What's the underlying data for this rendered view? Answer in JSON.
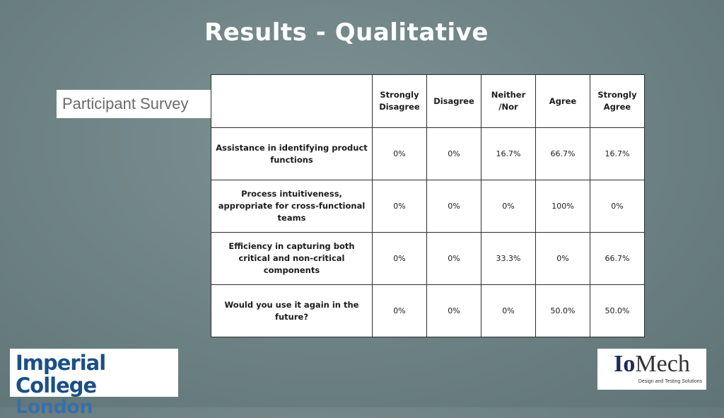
{
  "title": "Results - Qualitative",
  "survey_label": "Participant Survey",
  "table": {
    "headers": [
      "",
      "Strongly Disagree",
      "Disagree",
      "Neither /Nor",
      "Agree",
      "Strongly Agree"
    ],
    "rows": [
      {
        "question": "Assistance in identifying product functions",
        "values": [
          "0%",
          "0%",
          "16.7%",
          "66.7%",
          "16.7%"
        ]
      },
      {
        "question": "Process intuitiveness, appropriate for cross-functional teams",
        "values": [
          "0%",
          "0%",
          "0%",
          "100%",
          "0%"
        ]
      },
      {
        "question": "Efficiency in capturing both critical and non-critical components",
        "values": [
          "0%",
          "0%",
          "33.3%",
          "0%",
          "66.7%"
        ]
      },
      {
        "question": "Would you use it again in the future?",
        "values": [
          "0%",
          "0%",
          "0%",
          "50.0%",
          "50.0%"
        ]
      }
    ]
  },
  "logos": {
    "imperial_line1": "Imperial College",
    "imperial_line2": "London",
    "iomech_io": "Io",
    "iomech_mech": "Mech",
    "iomech_tagline": "Design and Testing Solutions"
  }
}
